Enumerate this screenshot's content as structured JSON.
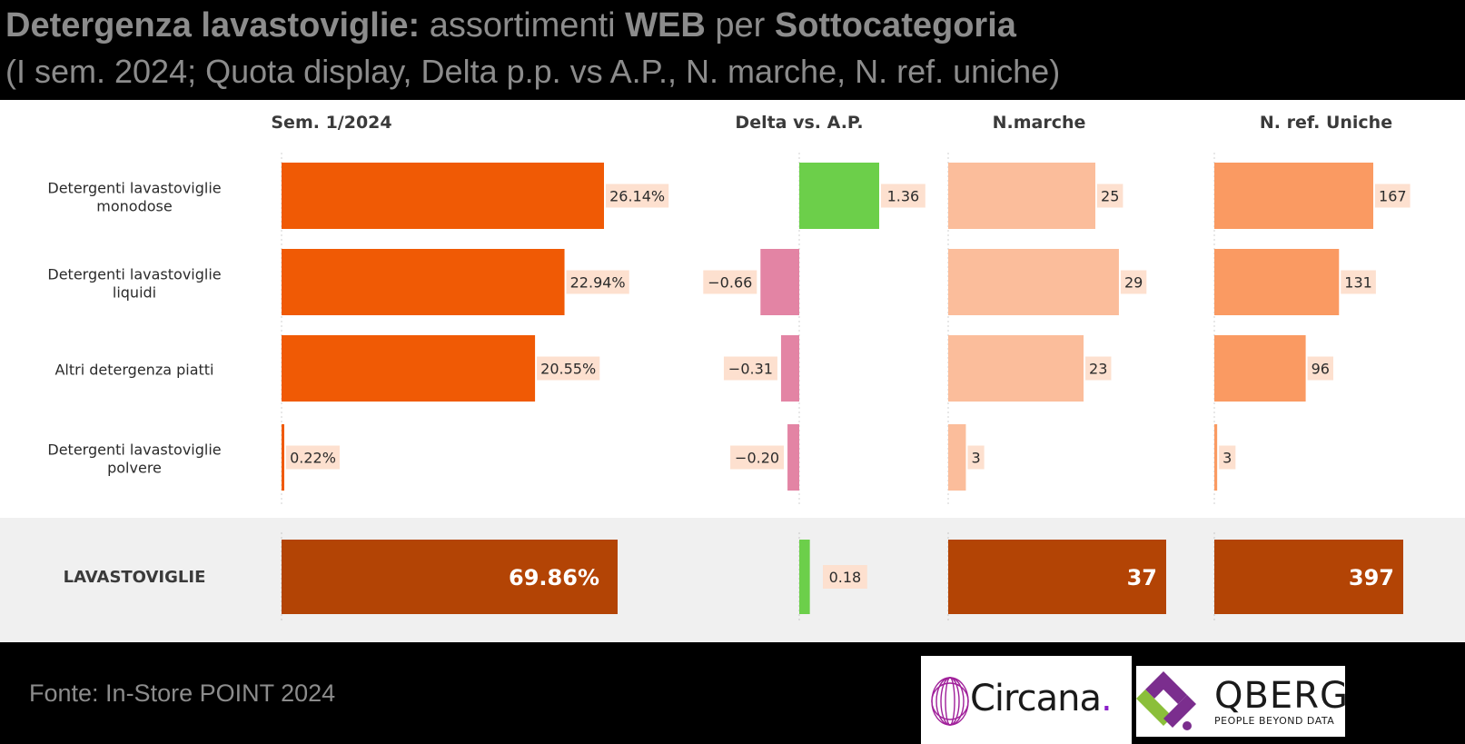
{
  "header": {
    "title_bold": "Detergenza lavastoviglie:",
    "title_mid": " assortimenti ",
    "title_bold2": "WEB",
    "title_mid2": " per ",
    "title_bold3": "Sottocategoria",
    "subtitle": "(I sem. 2024; Quota display, Delta p.p. vs A.P., N. marche, N. ref. uniche)"
  },
  "chart_data": {
    "type": "bar",
    "orientation": "horizontal",
    "categories": [
      "Detergenti lavastoviglie monodose",
      "Detergenti lavastoviglie liquidi",
      "Altri detergenza piatti",
      "Detergenti lavastoviglie polvere"
    ],
    "category_lines": [
      [
        "Detergenti lavastoviglie",
        "monodose"
      ],
      [
        "Detergenti lavastoviglie",
        "liquidi"
      ],
      [
        "Altri detergenza piatti"
      ],
      [
        "Detergenti lavastoviglie",
        "polvere"
      ]
    ],
    "total_label": "LAVASTOVIGLIE",
    "series": [
      {
        "name": "Sem. 1/2024",
        "values": [
          26.14,
          22.94,
          20.55,
          0.22
        ],
        "labels": [
          "26.14%",
          "22.94%",
          "20.55%",
          "0.22%"
        ],
        "total": 69.86,
        "total_label": "69.86%",
        "color": "#f05a05",
        "total_color": "#b34405"
      },
      {
        "name": "Delta vs. A.P.",
        "values": [
          1.36,
          -0.66,
          -0.31,
          -0.2
        ],
        "labels": [
          "1.36",
          "−0.66",
          "−0.31",
          "−0.20"
        ],
        "total": 0.18,
        "total_label": "0.18",
        "pos_color": "#6ccf4a",
        "neg_color": "#e384a4"
      },
      {
        "name": "N.marche",
        "values": [
          25,
          29,
          23,
          3
        ],
        "labels": [
          "25",
          "29",
          "23",
          "3"
        ],
        "total": 37,
        "total_label": "37",
        "color": "#fbbd9b",
        "total_color": "#b34405"
      },
      {
        "name": "N. ref. Uniche",
        "values": [
          167,
          131,
          96,
          3
        ],
        "labels": [
          "167",
          "131",
          "96",
          "3"
        ],
        "total": 397,
        "total_label": "397",
        "color": "#fa9a62",
        "total_color": "#b34405"
      }
    ],
    "label_bg": "#fde0cf"
  },
  "footer": {
    "source": "Fonte: In-Store POINT 2024",
    "logo1_name": "Circana",
    "logo1_dot": ".",
    "logo2_name": "QBERG",
    "logo2_tagline": "PEOPLE BEYOND DATA"
  }
}
